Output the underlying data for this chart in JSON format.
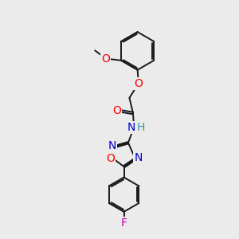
{
  "background_color": "#ebebeb",
  "bond_color": "#1a1a1a",
  "atom_colors": {
    "O": "#ff0000",
    "N": "#0000cc",
    "F": "#cc00aa",
    "H": "#339999",
    "C": "#1a1a1a"
  },
  "bond_width": 1.4,
  "font_size": 10,
  "figsize": [
    3.0,
    3.0
  ],
  "dpi": 100
}
